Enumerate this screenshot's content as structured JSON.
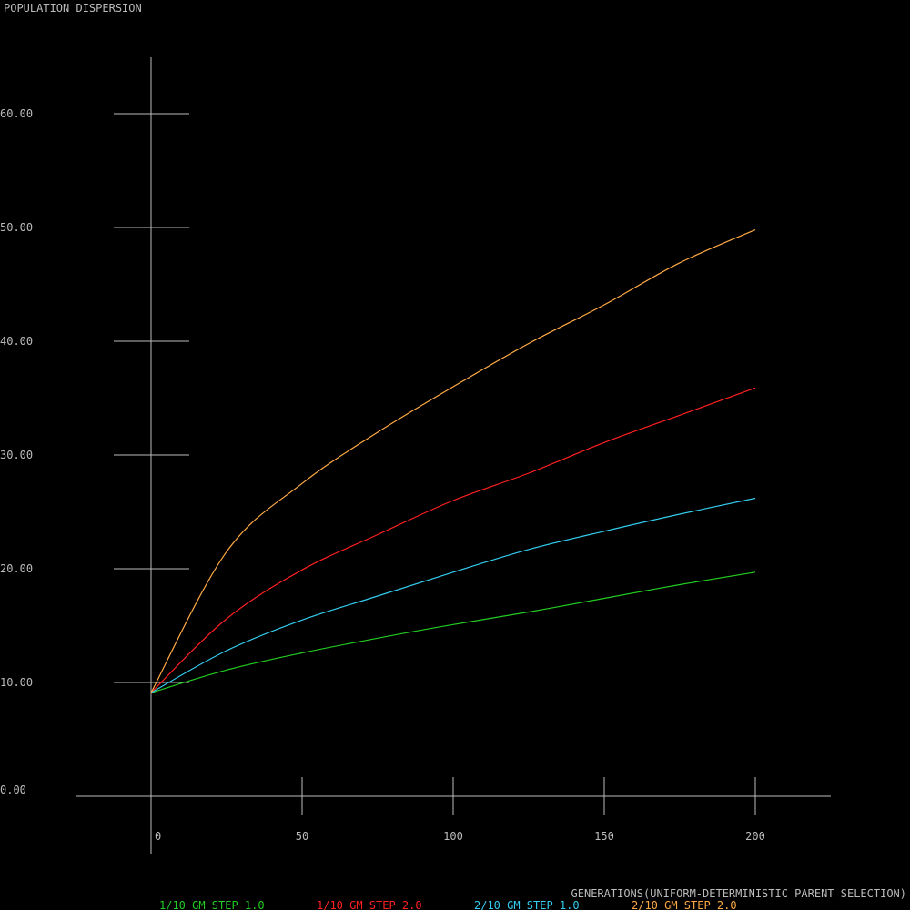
{
  "chart_data": {
    "type": "line",
    "title": "POPULATION DISPERSION",
    "xlabel": "GENERATIONS(UNIFORM-DETERMINISTIC PARENT SELECTION)",
    "ylabel": "",
    "xlim": [
      0,
      200
    ],
    "ylim": [
      0,
      60
    ],
    "x_ticks": [
      0,
      50,
      100,
      150,
      200
    ],
    "x_tick_labels": [
      "0",
      "50",
      "100",
      "150",
      "200"
    ],
    "y_ticks": [
      0,
      10,
      20,
      30,
      40,
      50,
      60
    ],
    "y_tick_labels": [
      "0.00",
      "10.00",
      "20.00",
      "30.00",
      "40.00",
      "50.00",
      "60.00"
    ],
    "grid": false,
    "legend_position": "bottom",
    "x": [
      0,
      25,
      50,
      75,
      100,
      125,
      150,
      175,
      200
    ],
    "series": [
      {
        "name": "1/10 GM STEP 1.0",
        "color": "#22cc22",
        "values": [
          9.1,
          11.1,
          12.6,
          13.9,
          15.1,
          16.2,
          17.4,
          18.6,
          19.7
        ]
      },
      {
        "name": "1/10 GM STEP 2.0",
        "color": "#ff2020",
        "values": [
          9.1,
          15.6,
          19.9,
          23.0,
          26.0,
          28.4,
          31.1,
          33.5,
          35.9
        ]
      },
      {
        "name": "2/10 GM STEP 1.0",
        "color": "#33ccee",
        "values": [
          9.1,
          12.8,
          15.5,
          17.6,
          19.7,
          21.7,
          23.3,
          24.8,
          26.2
        ]
      },
      {
        "name": "2/10 GM STEP 2.0",
        "color": "#ffaa44",
        "values": [
          9.1,
          21.5,
          27.5,
          32.0,
          36.0,
          39.8,
          43.2,
          46.9,
          49.8
        ]
      }
    ]
  }
}
